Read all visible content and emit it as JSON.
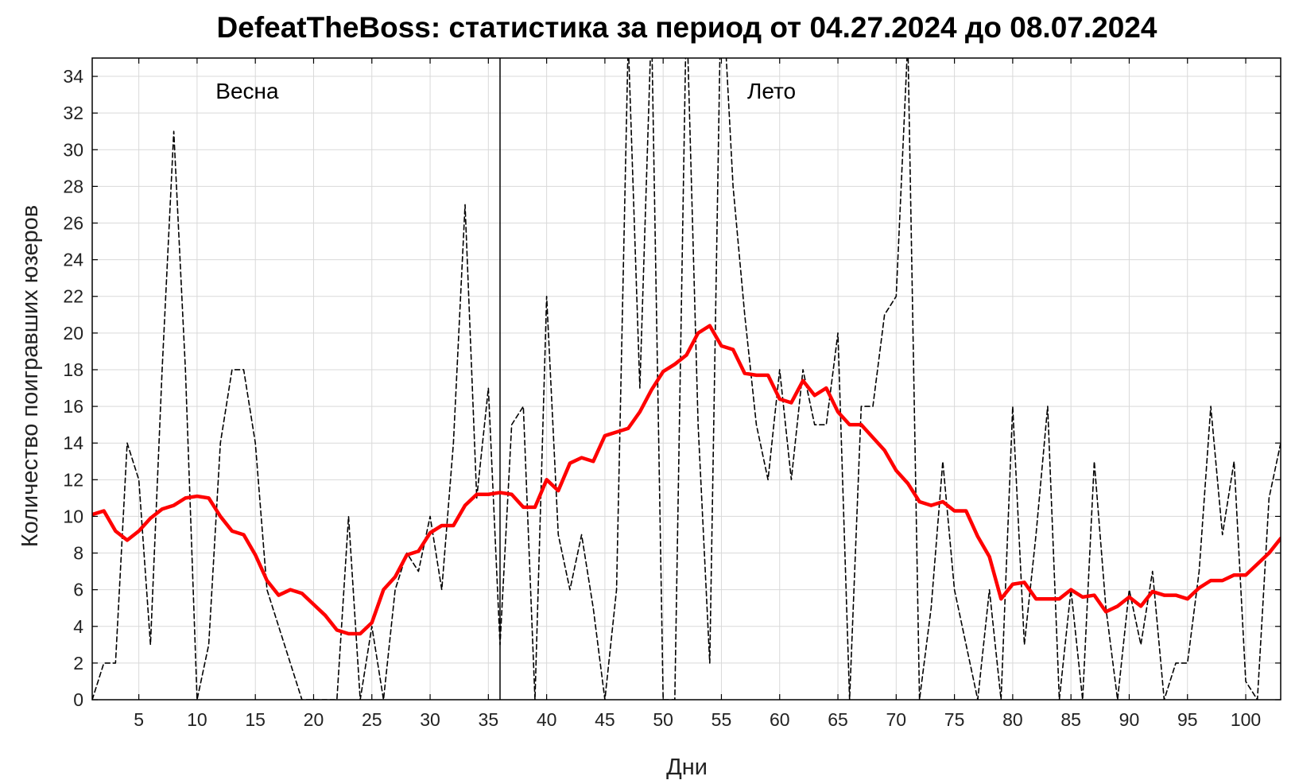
{
  "chart_data": {
    "type": "line",
    "title": "DefeatTheBoss: статистика за период от 04.27.2024 до 08.07.2024",
    "xlabel": "Дни",
    "ylabel": "Количество поигравших юзеров",
    "xlim": [
      1,
      103
    ],
    "ylim": [
      0,
      35
    ],
    "x_ticks": [
      5,
      10,
      15,
      20,
      25,
      30,
      35,
      40,
      45,
      50,
      55,
      60,
      65,
      70,
      75,
      80,
      85,
      90,
      95,
      100
    ],
    "y_ticks": [
      0,
      2,
      4,
      6,
      8,
      10,
      12,
      14,
      16,
      18,
      20,
      22,
      24,
      26,
      28,
      30,
      32,
      34
    ],
    "grid": true,
    "seasons": [
      {
        "label": "Весна",
        "x": 14.3
      },
      {
        "label": "Лето",
        "x": 59.3
      }
    ],
    "season_divider_x": 36,
    "series": [
      {
        "color": "#000000",
        "style": "dashed",
        "x": [
          1,
          2,
          3,
          4,
          5,
          6,
          7,
          8,
          9,
          10,
          11,
          12,
          13,
          14,
          15,
          16,
          17,
          18,
          19,
          20,
          21,
          22,
          23,
          24,
          25,
          26,
          27,
          28,
          29,
          30,
          31,
          32,
          33,
          34,
          35,
          36,
          37,
          38,
          39,
          40,
          41,
          42,
          43,
          44,
          45,
          46,
          47,
          48,
          49,
          50,
          51,
          52,
          53,
          54,
          55,
          56,
          57,
          58,
          59,
          60,
          61,
          62,
          63,
          64,
          65,
          66,
          67,
          68,
          69,
          70,
          71,
          72,
          73,
          74,
          75,
          76,
          77,
          78,
          79,
          80,
          81,
          82,
          83,
          84,
          85,
          86,
          87,
          88,
          89,
          90,
          91,
          92,
          93,
          94,
          95,
          96,
          97,
          98,
          99,
          100,
          101,
          102,
          103
        ],
        "values": [
          0,
          2,
          2,
          14,
          12,
          3,
          18,
          31,
          18,
          0,
          3,
          14,
          18,
          18,
          14,
          6,
          4,
          2,
          0,
          0,
          0,
          0,
          10,
          0,
          4,
          0,
          6,
          8,
          7,
          10,
          6,
          14,
          27,
          11,
          17,
          3,
          15,
          16,
          0,
          22,
          9,
          6,
          9,
          5,
          0,
          6,
          36,
          17,
          37,
          0,
          0,
          38,
          15,
          2,
          40,
          28,
          21,
          15,
          12,
          18,
          12,
          18,
          15,
          15,
          20,
          0,
          16,
          16,
          21,
          22,
          36,
          0,
          5,
          13,
          6,
          3,
          0,
          6,
          0,
          16,
          3,
          9,
          16,
          0,
          6,
          0,
          13,
          5,
          0,
          6,
          3,
          7,
          0,
          2,
          2,
          7,
          16,
          9,
          13,
          1,
          0,
          11,
          14
        ]
      },
      {
        "color": "#ff0000",
        "style": "solid",
        "x": [
          1,
          2,
          3,
          4,
          5,
          6,
          7,
          8,
          9,
          10,
          11,
          12,
          13,
          14,
          15,
          16,
          17,
          18,
          19,
          20,
          21,
          22,
          23,
          24,
          25,
          26,
          27,
          28,
          29,
          30,
          31,
          32,
          33,
          34,
          35,
          36,
          37,
          38,
          39,
          40,
          41,
          42,
          43,
          44,
          45,
          46,
          47,
          48,
          49,
          50,
          51,
          52,
          53,
          54,
          55,
          56,
          57,
          58,
          59,
          60,
          61,
          62,
          63,
          64,
          65,
          66,
          67,
          68,
          69,
          70,
          71,
          72,
          73,
          74,
          75,
          76,
          77,
          78,
          79,
          80,
          81,
          82,
          83,
          84,
          85,
          86,
          87,
          88,
          89,
          90,
          91,
          92,
          93,
          94,
          95,
          96,
          97,
          98,
          99,
          100,
          101,
          102,
          103
        ],
        "values": [
          10.1,
          10.3,
          9.2,
          8.7,
          9.2,
          9.9,
          10.4,
          10.6,
          11.0,
          11.1,
          11.0,
          10.0,
          9.2,
          9.0,
          7.9,
          6.5,
          5.7,
          6.0,
          5.8,
          5.2,
          4.6,
          3.8,
          3.6,
          3.6,
          4.2,
          6.0,
          6.7,
          7.9,
          8.1,
          9.1,
          9.5,
          9.5,
          10.6,
          11.2,
          11.2,
          11.3,
          11.2,
          10.5,
          10.5,
          12.0,
          11.4,
          12.9,
          13.2,
          13.0,
          14.4,
          14.6,
          14.8,
          15.7,
          16.9,
          17.9,
          18.3,
          18.8,
          20.0,
          20.4,
          19.3,
          19.1,
          17.8,
          17.7,
          17.7,
          16.4,
          16.2,
          17.4,
          16.6,
          17.0,
          15.7,
          15.0,
          15.0,
          14.3,
          13.6,
          12.5,
          11.8,
          10.8,
          10.6,
          10.8,
          10.3,
          10.3,
          8.9,
          7.8,
          5.5,
          6.3,
          6.4,
          5.5,
          5.5,
          5.5,
          6.0,
          5.6,
          5.7,
          4.8,
          5.1,
          5.6,
          5.1,
          5.9,
          5.7,
          5.7,
          5.5,
          6.1,
          6.5,
          6.5,
          6.8,
          6.8,
          7.4,
          8.0,
          8.8
        ]
      }
    ]
  }
}
